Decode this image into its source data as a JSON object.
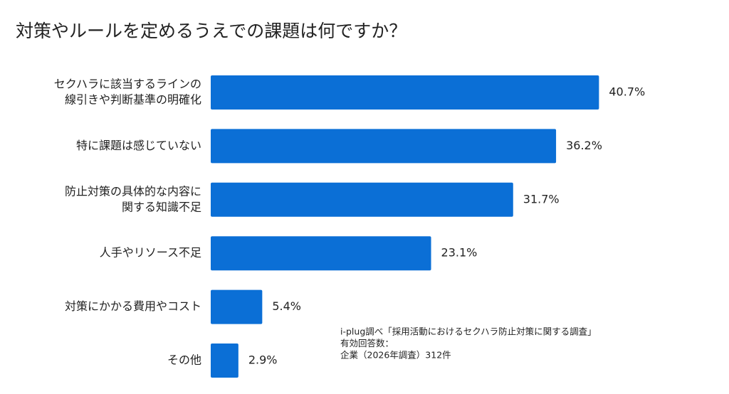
{
  "chart_data": {
    "type": "bar",
    "orientation": "horizontal",
    "title": "対策やルールを定めるうえでの課題は何ですか？",
    "categories": [
      [
        "セクハラに該当するラインの",
        "線引きや判断基準の明確化"
      ],
      [
        "特に課題は感じていない"
      ],
      [
        "防止対策の具体的な内容に",
        "関する知識不足"
      ],
      [
        "人手やリソース不足"
      ],
      [
        "対策にかかる費用やコスト"
      ],
      [
        "その他"
      ]
    ],
    "values": [
      40.7,
      36.2,
      31.7,
      23.1,
      5.4,
      2.9
    ],
    "value_labels": [
      "40.7%",
      "36.2%",
      "31.7%",
      "23.1%",
      "5.4%",
      "2.9%"
    ],
    "color": "#0b6fd6",
    "annotations": [
      "i-plug調べ「採用活動におけるセクハラ防止対策に関する調査」",
      "有効回答数：",
      "企業（2026年調査）312件"
    ]
  }
}
